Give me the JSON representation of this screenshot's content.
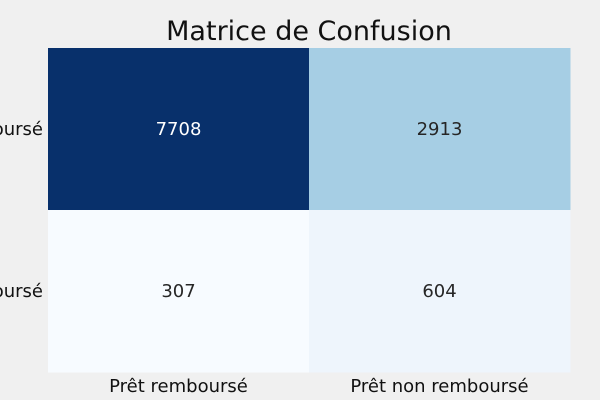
{
  "chart_data": {
    "type": "heatmap",
    "title": "Matrice de Confusion",
    "x_categories": [
      "Prêt remboursé",
      "Prêt non remboursé"
    ],
    "y_categories": [
      "Prêt remboursé",
      "Prêt non remboursé"
    ],
    "values": [
      [
        7708,
        2913
      ],
      [
        307,
        604
      ]
    ],
    "colormap": "Blues",
    "colors": {
      "background": "#f0f0f0",
      "cells": [
        [
          "#08306b",
          "#a6cee4"
        ],
        [
          "#f7fbff",
          "#eef5fc"
        ]
      ],
      "text_dark": "#262626",
      "text_light": "#ffffff"
    },
    "grid": false,
    "colorbar": false
  }
}
